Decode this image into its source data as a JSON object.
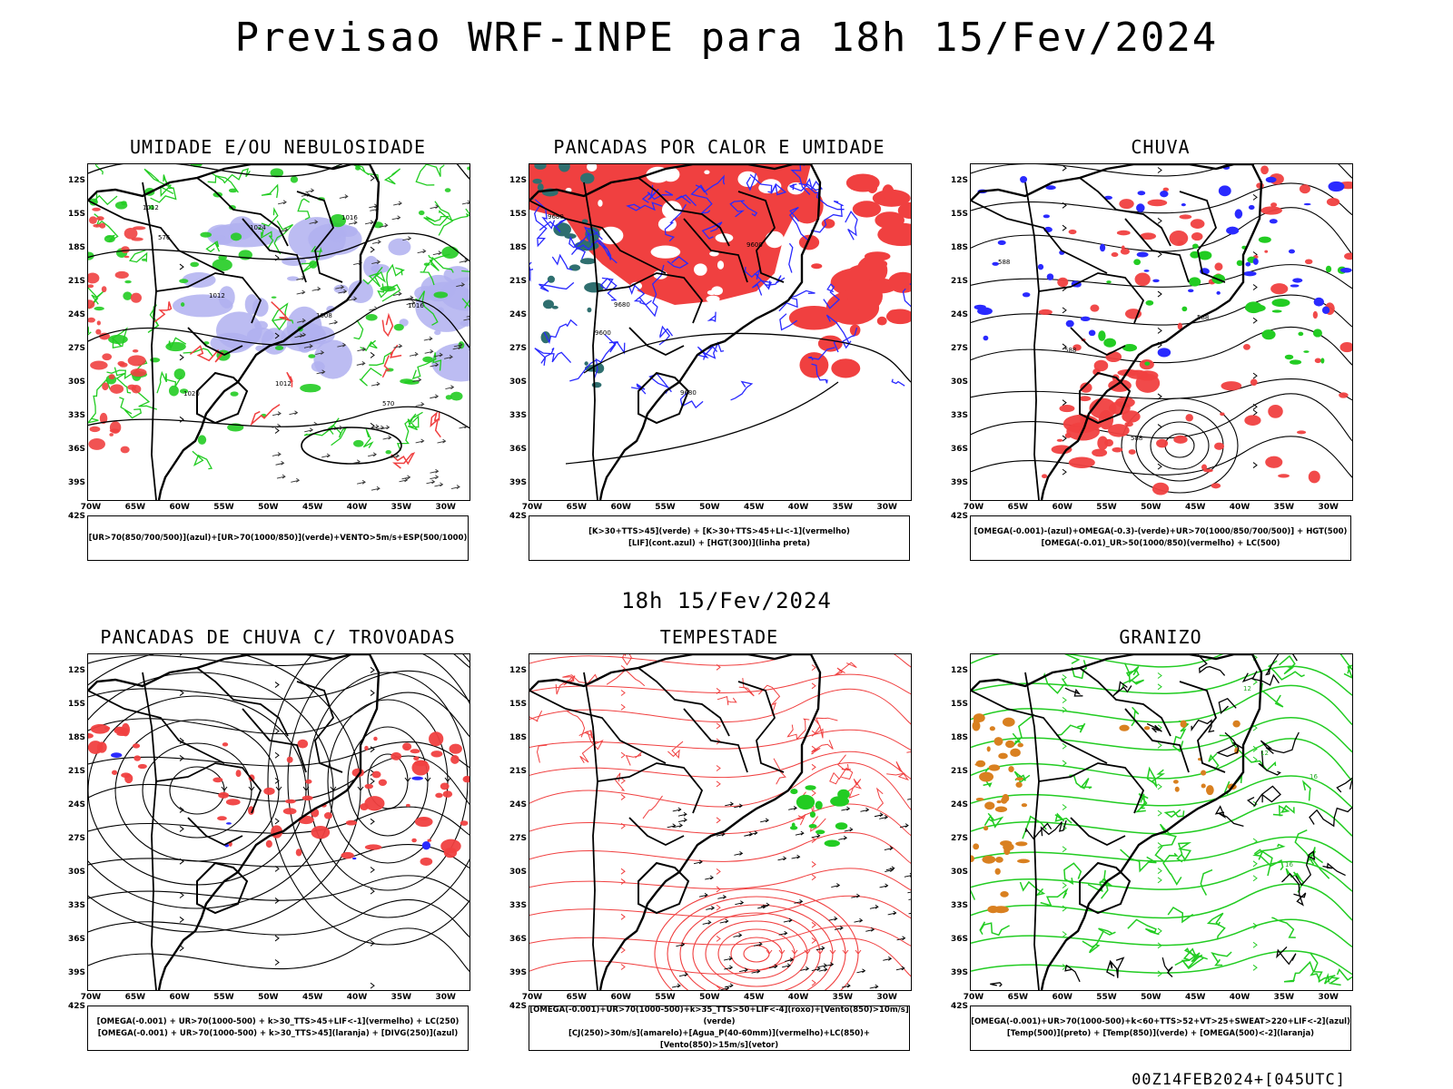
{
  "title": "Previsao WRF-INPE  para 18h 15/Fev/2024",
  "mid_title": "18h 15/Fev/2024",
  "footer": "00Z14FEB2024+[045UTC]",
  "axes": {
    "lat_labels": [
      "12S",
      "15S",
      "18S",
      "21S",
      "24S",
      "27S",
      "30S",
      "33S",
      "36S",
      "39S",
      "42S"
    ],
    "lon_labels": [
      "70W",
      "65W",
      "60W",
      "55W",
      "50W",
      "45W",
      "40W",
      "35W",
      "30W"
    ]
  },
  "colors": {
    "humid": "#b0b0f0",
    "green": "#22cc22",
    "red": "#f04040",
    "blue": "#2a2aff",
    "orange": "#d98020",
    "teal": "#2f6f6f"
  },
  "panels": [
    {
      "title": "UMIDADE E/OU NEBULOSIDADE",
      "legend": [
        "[UR>70(850/700/500)](azul)+[UR>70(1000/850)](verde)+VENTO>5m/s+ESP(500/1000)"
      ],
      "contour_labels": [
        "1012",
        "1012",
        "1012",
        "1016",
        "1016",
        "1020",
        "1024",
        "1008",
        "570",
        "576"
      ]
    },
    {
      "title": "PANCADAS POR CALOR E UMIDADE",
      "legend": [
        "[K>30+TTS>45](verde) + [K>30+TTS>45+LI<-1](vermelho)",
        "[LIF](cont.azul) + [HGT(300)](linha preta)"
      ],
      "contour_labels": [
        "9680",
        "9680",
        "9680",
        "9600",
        "9600"
      ]
    },
    {
      "title": "CHUVA",
      "legend": [
        "[OMEGA(-0.001)-(azul)+OMEGA(-0.3)-(verde)+UR>70(1000/850/700/500)] + HGT(500)",
        "[OMEGA(-0.01)_UR>50(1000/850)(vermelho) + LC(500)"
      ],
      "contour_labels": [
        "588",
        "588",
        "588",
        "588"
      ]
    },
    {
      "title": "PANCADAS DE CHUVA C/ TROVOADAS",
      "legend": [
        "[OMEGA(-0.001) + UR>70(1000-500) + k>30_TTS>45+LIF<-1](vermelho) + LC(250)",
        "[OMEGA(-0.001) + UR>70(1000-500) + k>30_TTS>45](laranja) + [DIVG(250)](azul)"
      ],
      "contour_labels": []
    },
    {
      "title": "TEMPESTADE",
      "legend": [
        "[OMEGA(-0.001)+UR>70(1000-500)+k>35_TTS>50+LIF<-4](roxo)+[Vento(850)>10m/s](verde)",
        "[CJ(250)>30m/s](amarelo)+[Agua_P(40-60mm)](vermelho)+LC(850)+[Vento(850)>15m/s](vetor)"
      ],
      "contour_labels": []
    },
    {
      "title": "GRANIZO",
      "legend": [
        "[OMEGA(-0.001)+UR>70(1000-500)+k<60+TTS>52+VT>25+SWEAT>220+LIF<-2](azul)",
        "[Temp(500)](preto) + [Temp(850)](verde) + [OMEGA(500)<-2](laranja)"
      ],
      "contour_labels": [
        "12",
        "16",
        "16",
        "12"
      ]
    }
  ]
}
